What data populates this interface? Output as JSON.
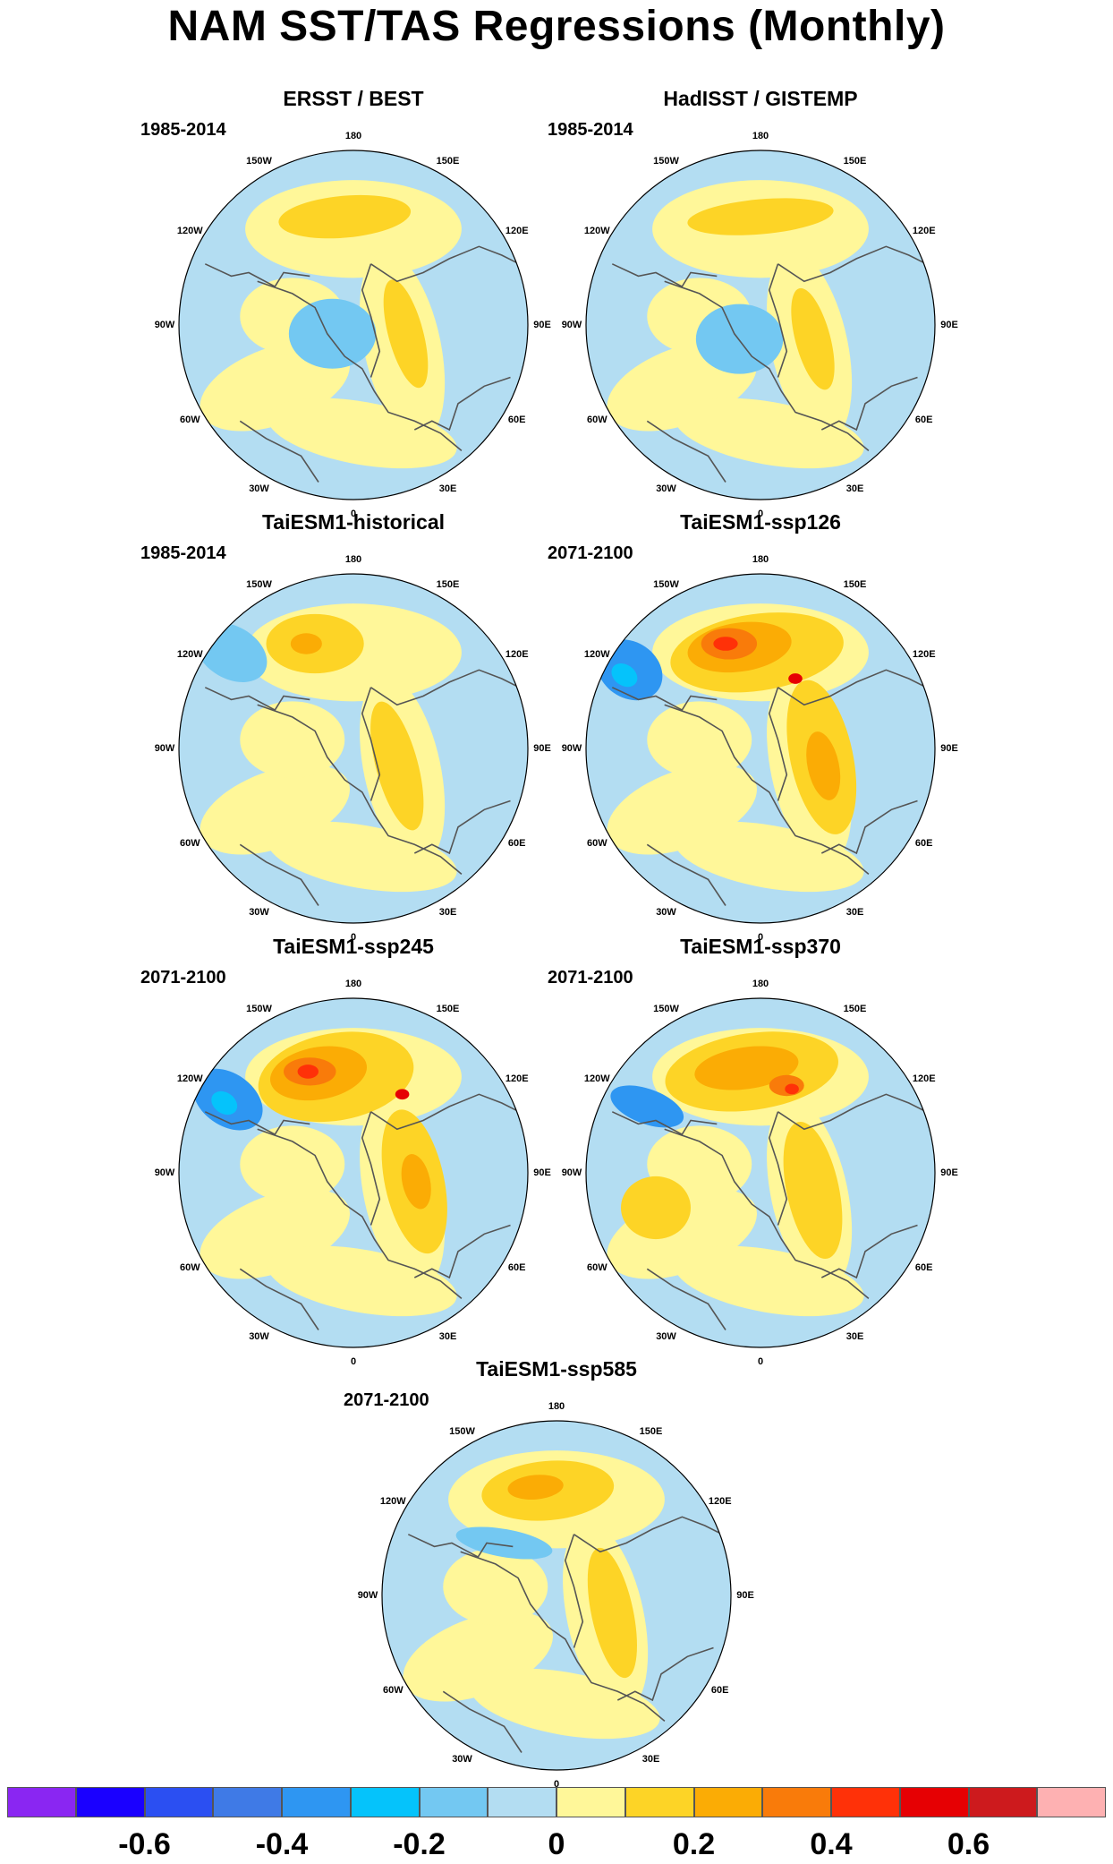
{
  "title": "NAM SST/TAS Regressions (Monthly)",
  "longitude_labels": {
    "lon_180": "180",
    "lon_150e": "150E",
    "lon_120e": "120E",
    "lon_90e": "90E",
    "lon_60e": "60E",
    "lon_30e": "30E",
    "lon_0": "0",
    "lon_30w": "30W",
    "lon_60w": "60W",
    "lon_90w": "90W",
    "lon_120w": "120W",
    "lon_150w": "150W"
  },
  "panels": [
    {
      "title": "ERSST / BEST",
      "period": "1985-2014"
    },
    {
      "title": "HadISST / GISTEMP",
      "period": "1985-2014"
    },
    {
      "title": "TaiESM1-historical",
      "period": "1985-2014"
    },
    {
      "title": "TaiESM1-ssp126",
      "period": "2071-2100"
    },
    {
      "title": "TaiESM1-ssp245",
      "period": "2071-2100"
    },
    {
      "title": "TaiESM1-ssp370",
      "period": "2071-2100"
    },
    {
      "title": "TaiESM1-ssp585",
      "period": "2071-2100"
    }
  ],
  "colorbar": {
    "colors": [
      "#8a26f2",
      "#1a00ff",
      "#2b4ff2",
      "#3f7ae6",
      "#2e96f2",
      "#05c3fb",
      "#73c8f2",
      "#b3ddf2",
      "#fff799",
      "#fdd426",
      "#fbac05",
      "#f97b0a",
      "#ff3108",
      "#e60003",
      "#cd1a1d",
      "#feb1b2"
    ],
    "labels": [
      "-0.6",
      "-0.4",
      "-0.2",
      "0",
      "0.2",
      "0.4",
      "0.6"
    ]
  }
}
